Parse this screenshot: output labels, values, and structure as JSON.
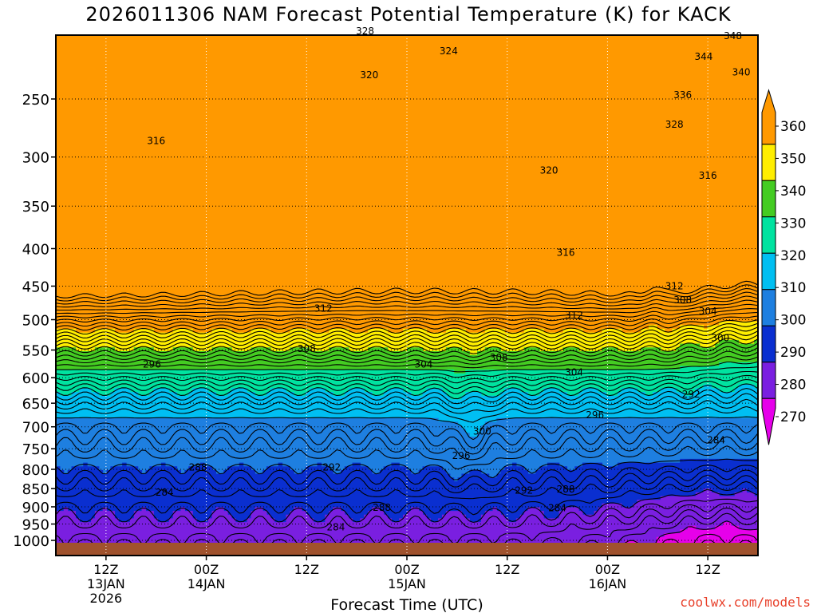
{
  "page": {
    "title": "2026011306 NAM Forecast Potential Temperature (K) for KACK",
    "credit": "coolwx.com/models"
  },
  "chart_data": {
    "type": "contour",
    "title": "2026011306 NAM Forecast Potential Temperature (K) for KACK",
    "xlabel": "Forecast Time (UTC)",
    "ylabel": "",
    "x_ticks": [
      {
        "label": "12Z",
        "sub": "13JAN",
        "sub2": "2026",
        "hour": 6
      },
      {
        "label": "00Z",
        "sub": "14JAN",
        "sub2": "",
        "hour": 18
      },
      {
        "label": "12Z",
        "sub": "",
        "sub2": "",
        "hour": 30
      },
      {
        "label": "00Z",
        "sub": "15JAN",
        "sub2": "",
        "hour": 42
      },
      {
        "label": "12Z",
        "sub": "",
        "sub2": "",
        "hour": 54
      },
      {
        "label": "00Z",
        "sub": "16JAN",
        "sub2": "",
        "hour": 66
      },
      {
        "label": "12Z",
        "sub": "",
        "sub2": "",
        "hour": 78
      }
    ],
    "x_range_hours": [
      0,
      84
    ],
    "y_ticks": [
      250,
      300,
      350,
      400,
      450,
      500,
      550,
      600,
      650,
      700,
      750,
      800,
      850,
      900,
      950,
      1000
    ],
    "y_range_hPa": [
      200,
      1030
    ],
    "y_scale": "log (pressure)",
    "grid": "dotted",
    "colorbar": {
      "labels": [
        "360",
        "350",
        "340",
        "330",
        "320",
        "310",
        "300",
        "290",
        "280",
        "270"
      ],
      "bins": [
        {
          "lo": 350,
          "hi": 360,
          "color": "#ff9900"
        },
        {
          "lo": 340,
          "hi": 350,
          "color": "#ffee00"
        },
        {
          "lo": 330,
          "hi": 340,
          "color": "#44cc22"
        },
        {
          "lo": 320,
          "hi": 330,
          "color": "#00e3a0"
        },
        {
          "lo": 310,
          "hi": 320,
          "color": "#00bff2"
        },
        {
          "lo": 300,
          "hi": 310,
          "color": "#1e7fe0"
        },
        {
          "lo": 290,
          "hi": 300,
          "color": "#0a2fd0"
        },
        {
          "lo": 280,
          "hi": 290,
          "color": "#7a1fe0"
        },
        {
          "lo": 270,
          "hi": 280,
          "color": "#e600ea"
        }
      ]
    },
    "contour_labels": [
      {
        "text": "328",
        "hour": 37,
        "p": 202
      },
      {
        "text": "324",
        "hour": 47,
        "p": 215
      },
      {
        "text": "320",
        "hour": 37.5,
        "p": 232
      },
      {
        "text": "316",
        "hour": 12,
        "p": 285
      },
      {
        "text": "320",
        "hour": 59,
        "p": 313
      },
      {
        "text": "316",
        "hour": 78,
        "p": 318
      },
      {
        "text": "316",
        "hour": 61,
        "p": 405
      },
      {
        "text": "312",
        "hour": 74,
        "p": 450
      },
      {
        "text": "312",
        "hour": 32,
        "p": 483
      },
      {
        "text": "312",
        "hour": 62,
        "p": 493
      },
      {
        "text": "308",
        "hour": 75,
        "p": 470
      },
      {
        "text": "304",
        "hour": 78,
        "p": 487
      },
      {
        "text": "308",
        "hour": 30,
        "p": 548
      },
      {
        "text": "308",
        "hour": 53,
        "p": 563
      },
      {
        "text": "304",
        "hour": 44,
        "p": 575
      },
      {
        "text": "304",
        "hour": 62,
        "p": 590
      },
      {
        "text": "300",
        "hour": 79.5,
        "p": 530
      },
      {
        "text": "296",
        "hour": 11.5,
        "p": 575
      },
      {
        "text": "292",
        "hour": 76,
        "p": 632
      },
      {
        "text": "296",
        "hour": 64.5,
        "p": 675
      },
      {
        "text": "300",
        "hour": 51,
        "p": 710
      },
      {
        "text": "284",
        "hour": 79,
        "p": 730
      },
      {
        "text": "296",
        "hour": 48.5,
        "p": 767
      },
      {
        "text": "288",
        "hour": 17,
        "p": 795
      },
      {
        "text": "292",
        "hour": 33,
        "p": 795
      },
      {
        "text": "292",
        "hour": 56,
        "p": 855
      },
      {
        "text": "288",
        "hour": 61,
        "p": 852
      },
      {
        "text": "284",
        "hour": 13,
        "p": 860
      },
      {
        "text": "288",
        "hour": 39,
        "p": 902
      },
      {
        "text": "284",
        "hour": 60,
        "p": 903
      },
      {
        "text": "284",
        "hour": 33.5,
        "p": 960
      },
      {
        "text": "348",
        "hour": 81,
        "p": 205
      },
      {
        "text": "344",
        "hour": 77.5,
        "p": 219
      },
      {
        "text": "340",
        "hour": 82,
        "p": 230
      },
      {
        "text": "336",
        "hour": 75,
        "p": 247
      },
      {
        "text": "328",
        "hour": 74,
        "p": 271
      }
    ]
  }
}
